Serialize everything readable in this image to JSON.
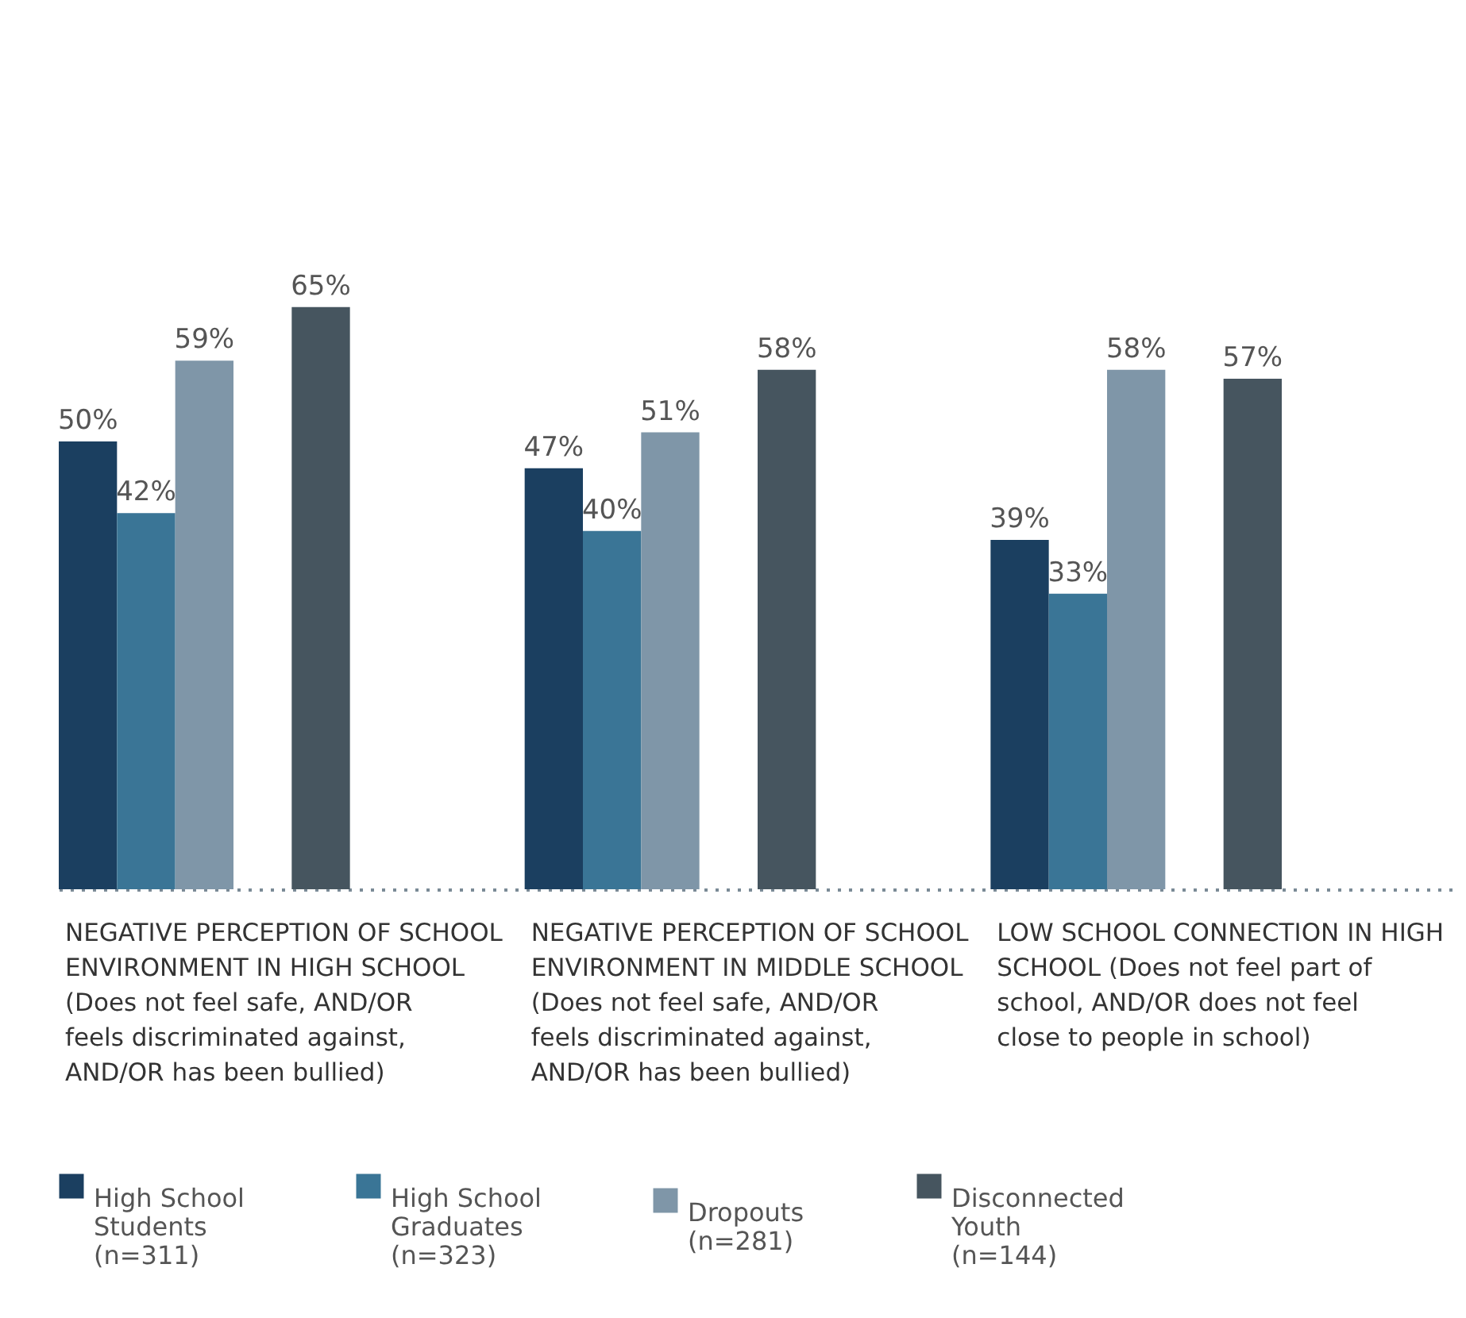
{
  "chart_data": {
    "type": "bar",
    "categories": [
      "NEGATIVE PERCEPTION OF SCHOOL ENVIRONMENT IN HIGH SCHOOL (Does not feel safe, AND/OR feels discriminated against, AND/OR has been bullied)",
      "NEGATIVE PERCEPTION OF SCHOOL ENVIRONMENT IN MIDDLE SCHOOL (Does not feel safe, AND/OR feels discriminated against, AND/OR has been bullied)",
      "LOW SCHOOL CONNECTION IN HIGH SCHOOL (Does not feel part of school, AND/OR does not feel close to people in school)"
    ],
    "series": [
      {
        "name": "High School Students (n=311)",
        "color": "#1b3f60",
        "values": [
          50,
          47,
          39
        ],
        "value_labels": [
          "50%",
          "47%",
          "39%"
        ]
      },
      {
        "name": "High School Graduates (n=323)",
        "color": "#3a7596",
        "values": [
          42,
          40,
          33
        ],
        "value_labels": [
          "42%",
          "40%",
          "33%"
        ]
      },
      {
        "name": "Dropouts (n=281)",
        "color": "#7f96a8",
        "values": [
          59,
          51,
          58
        ],
        "value_labels": [
          "59%",
          "51%",
          "58%"
        ]
      },
      {
        "name": "Disconnected Youth (n=144)",
        "color": "#46555f",
        "values": [
          65,
          58,
          57
        ],
        "value_labels": [
          "65%",
          "58%",
          "57%"
        ]
      }
    ],
    "legend": "bottom"
  }
}
